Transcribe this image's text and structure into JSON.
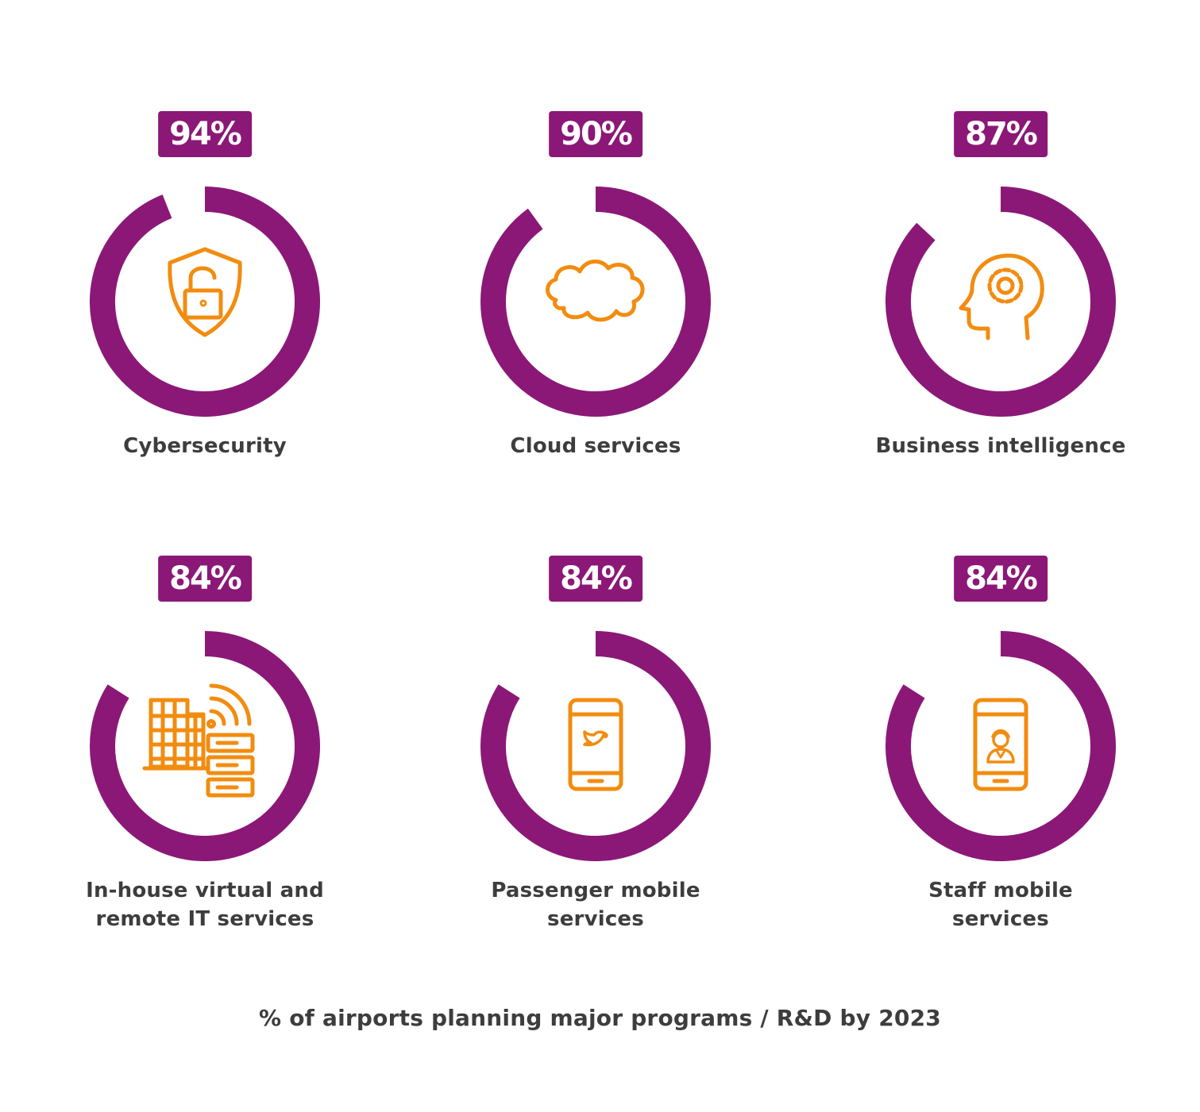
{
  "colors": {
    "ring": "#8b1877",
    "icon": "#f28c0f",
    "text": "#3d3d3d",
    "badge_text": "#ffffff"
  },
  "chart_data": {
    "type": "donut",
    "title": "% of airports planning major programs / R&D by 2023",
    "items": [
      {
        "label": "Cybersecurity",
        "value": 94,
        "display": "94%",
        "icon": "shield-lock-icon"
      },
      {
        "label": "Cloud services",
        "value": 90,
        "display": "90%",
        "icon": "cloud-icon"
      },
      {
        "label": "Business intelligence",
        "value": 87,
        "display": "87%",
        "icon": "head-gear-icon"
      },
      {
        "label": "In-house virtual and\nremote IT services",
        "value": 84,
        "display": "84%",
        "icon": "building-wifi-server-icon"
      },
      {
        "label": "Passenger mobile\nservices",
        "value": 84,
        "display": "84%",
        "icon": "phone-twitter-icon"
      },
      {
        "label": "Staff mobile\nservices",
        "value": 84,
        "display": "84%",
        "icon": "phone-staff-icon"
      }
    ]
  }
}
